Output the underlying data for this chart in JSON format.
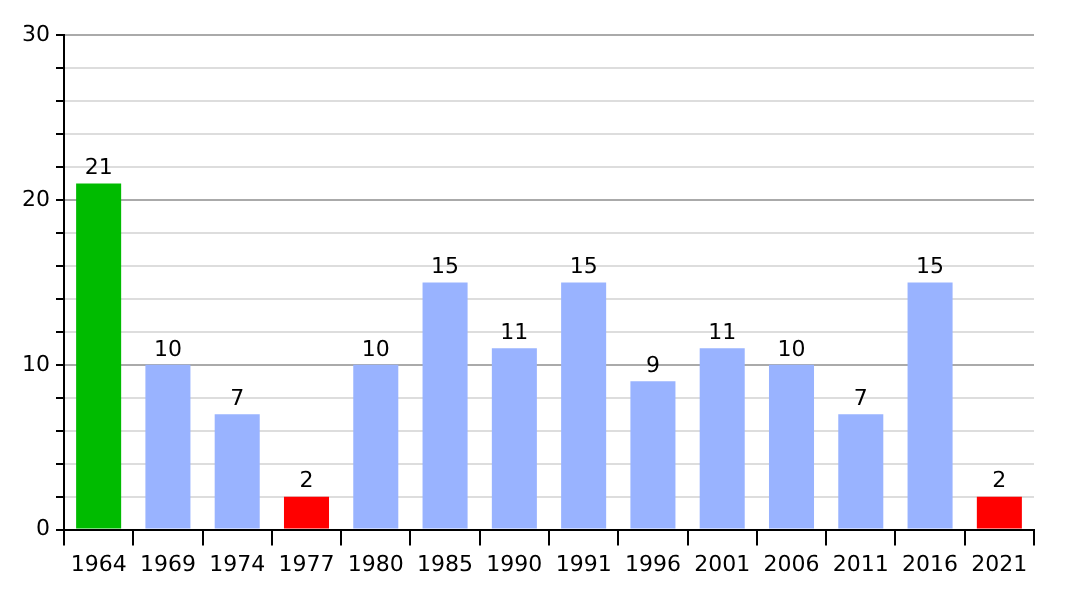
{
  "chart_data": {
    "type": "bar",
    "categories": [
      "1964",
      "1969",
      "1974",
      "1977",
      "1980",
      "1985",
      "1990",
      "1991",
      "1996",
      "2001",
      "2006",
      "2011",
      "2016",
      "2021"
    ],
    "values": [
      21,
      10,
      7,
      2,
      10,
      15,
      11,
      15,
      9,
      11,
      10,
      7,
      15,
      2
    ],
    "colors": [
      "#00bb00",
      "#99b3ff",
      "#99b3ff",
      "#ff0000",
      "#99b3ff",
      "#99b3ff",
      "#99b3ff",
      "#99b3ff",
      "#99b3ff",
      "#99b3ff",
      "#99b3ff",
      "#99b3ff",
      "#99b3ff",
      "#ff0000"
    ],
    "ylim": [
      0,
      30
    ],
    "yticks": [
      0,
      {
        "value": 2,
        "label": null
      },
      {
        "value": 4,
        "label": null
      },
      {
        "value": 6,
        "label": null
      },
      {
        "value": 8,
        "label": null
      },
      10,
      {
        "value": 12,
        "label": null
      },
      {
        "value": 14,
        "label": null
      },
      {
        "value": 16,
        "label": null
      },
      {
        "value": 18,
        "label": null
      },
      20,
      {
        "value": 22,
        "label": null
      },
      {
        "value": 24,
        "label": null
      },
      {
        "value": 26,
        "label": null
      },
      {
        "value": 28,
        "label": null
      },
      30
    ],
    "grid": true,
    "data_labels": true,
    "legend": false
  }
}
